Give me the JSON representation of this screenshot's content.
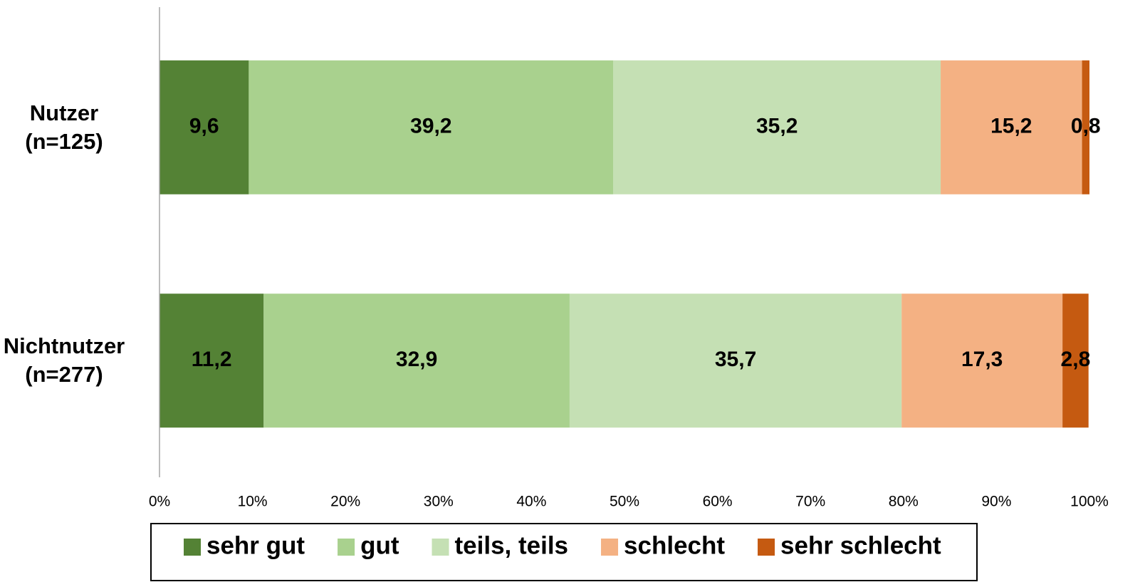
{
  "chart_data": {
    "type": "bar",
    "orientation": "horizontal",
    "stacked": true,
    "categories": [
      "Nutzer\n(n=125)",
      "Nichtnutzer\n(n=277)"
    ],
    "series": [
      {
        "name": "sehr gut",
        "color": "#548235",
        "values": [
          9.6,
          11.2
        ],
        "value_labels": [
          "9,6",
          "11,2"
        ]
      },
      {
        "name": "gut",
        "color": "#a9d18e",
        "values": [
          39.2,
          32.9
        ],
        "value_labels": [
          "39,2",
          "32,9"
        ]
      },
      {
        "name": "teils, teils",
        "color": "#c5e0b4",
        "values": [
          35.2,
          35.7
        ],
        "value_labels": [
          "35,2",
          "35,7"
        ]
      },
      {
        "name": "schlecht",
        "color": "#f4b183",
        "values": [
          15.2,
          17.3
        ],
        "value_labels": [
          "15,2",
          "17,3"
        ]
      },
      {
        "name": "sehr schlecht",
        "color": "#c55a11",
        "values": [
          0.8,
          2.8
        ],
        "value_labels": [
          "0,8",
          "2,8"
        ]
      }
    ],
    "xlim": [
      0,
      100
    ],
    "xticks": [
      {
        "value": 0,
        "label": "0%"
      },
      {
        "value": 10,
        "label": "10%"
      },
      {
        "value": 20,
        "label": "20%"
      },
      {
        "value": 30,
        "label": "30%"
      },
      {
        "value": 40,
        "label": "40%"
      },
      {
        "value": 50,
        "label": "50%"
      },
      {
        "value": 60,
        "label": "60%"
      },
      {
        "value": 70,
        "label": "70%"
      },
      {
        "value": 80,
        "label": "80%"
      },
      {
        "value": 90,
        "label": "90%"
      },
      {
        "value": 100,
        "label": "100%"
      }
    ],
    "grid": false,
    "legend": "bottom"
  }
}
